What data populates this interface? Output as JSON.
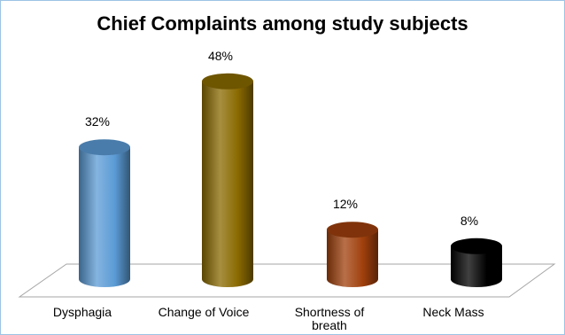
{
  "chart_data": {
    "type": "bar",
    "title": "Chief Complaints among study subjects",
    "categories": [
      "Dysphagia",
      "Change of Voice",
      "Shortness of breath",
      "Neck Mass"
    ],
    "category_lines": [
      [
        "Dysphagia"
      ],
      [
        "Change of Voice"
      ],
      [
        "Shortness of",
        "breath"
      ],
      [
        "Neck Mass"
      ]
    ],
    "values": [
      32,
      48,
      12,
      8
    ],
    "value_labels": [
      "32%",
      "48%",
      "12%",
      "8%"
    ],
    "unit": "%",
    "style": "3D cylinders",
    "gridlines": false,
    "legend": "none",
    "colors": [
      "#5b9bd5",
      "#8a6a00",
      "#a0400c",
      "#000000"
    ]
  }
}
